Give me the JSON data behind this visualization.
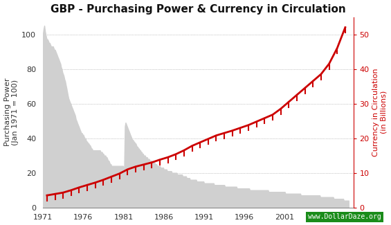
{
  "title": "GBP - Purchasing Power & Currency in Circulation",
  "ylabel_left": "Purchasing Power\n(Jan 1971 = 100)",
  "ylabel_right": "Currency in Circulation\n(in Billions)",
  "xlim": [
    1971,
    2009.5
  ],
  "ylim_left": [
    0,
    110
  ],
  "ylim_right": [
    0,
    55
  ],
  "xticks": [
    1971,
    1976,
    1981,
    1986,
    1991,
    1996,
    2001,
    2006
  ],
  "yticks_left": [
    0,
    20,
    40,
    60,
    80,
    100
  ],
  "yticks_right": [
    0,
    10,
    20,
    30,
    40,
    50
  ],
  "bg_color": "#ffffff",
  "grid_color": "#999999",
  "pp_fill_color": "#d0d0d0",
  "currency_line_color": "#cc0000",
  "watermark_text": "www.DollarDaze.org",
  "watermark_bg": "#1a8c1a",
  "watermark_text_color": "#ffffff",
  "pp_data": [
    [
      1971.0,
      100
    ],
    [
      1971.08,
      103
    ],
    [
      1971.17,
      105
    ],
    [
      1971.25,
      102
    ],
    [
      1971.33,
      100
    ],
    [
      1971.42,
      98
    ],
    [
      1971.5,
      97
    ],
    [
      1971.58,
      97
    ],
    [
      1971.67,
      96
    ],
    [
      1971.75,
      95
    ],
    [
      1971.83,
      95
    ],
    [
      1971.92,
      94
    ],
    [
      1972.0,
      93
    ],
    [
      1972.08,
      93
    ],
    [
      1972.17,
      93
    ],
    [
      1972.25,
      93
    ],
    [
      1972.33,
      92
    ],
    [
      1972.42,
      91
    ],
    [
      1972.5,
      91
    ],
    [
      1972.58,
      90
    ],
    [
      1972.67,
      89
    ],
    [
      1972.75,
      88
    ],
    [
      1972.83,
      87
    ],
    [
      1972.92,
      86
    ],
    [
      1973.0,
      85
    ],
    [
      1973.08,
      84
    ],
    [
      1973.17,
      83
    ],
    [
      1973.25,
      81
    ],
    [
      1973.33,
      80
    ],
    [
      1973.42,
      78
    ],
    [
      1973.5,
      77
    ],
    [
      1973.58,
      76
    ],
    [
      1973.67,
      74
    ],
    [
      1973.75,
      73
    ],
    [
      1973.83,
      71
    ],
    [
      1973.92,
      69
    ],
    [
      1974.0,
      67
    ],
    [
      1974.08,
      65
    ],
    [
      1974.17,
      63
    ],
    [
      1974.25,
      62
    ],
    [
      1974.33,
      61
    ],
    [
      1974.42,
      60
    ],
    [
      1974.5,
      59
    ],
    [
      1974.58,
      58
    ],
    [
      1974.67,
      57
    ],
    [
      1974.75,
      56
    ],
    [
      1974.83,
      55
    ],
    [
      1974.92,
      54
    ],
    [
      1975.0,
      53
    ],
    [
      1975.08,
      51
    ],
    [
      1975.17,
      50
    ],
    [
      1975.25,
      49
    ],
    [
      1975.33,
      48
    ],
    [
      1975.42,
      47
    ],
    [
      1975.5,
      46
    ],
    [
      1975.58,
      45
    ],
    [
      1975.67,
      44
    ],
    [
      1975.75,
      43
    ],
    [
      1975.83,
      43
    ],
    [
      1975.92,
      42
    ],
    [
      1976.0,
      42
    ],
    [
      1976.08,
      41
    ],
    [
      1976.17,
      40
    ],
    [
      1976.25,
      40
    ],
    [
      1976.33,
      39
    ],
    [
      1976.42,
      38
    ],
    [
      1976.5,
      38
    ],
    [
      1976.58,
      37
    ],
    [
      1976.67,
      37
    ],
    [
      1976.75,
      36
    ],
    [
      1976.83,
      36
    ],
    [
      1976.92,
      35
    ],
    [
      1977.0,
      34
    ],
    [
      1977.08,
      34
    ],
    [
      1977.17,
      33
    ],
    [
      1977.25,
      33
    ],
    [
      1977.33,
      33
    ],
    [
      1977.42,
      33
    ],
    [
      1977.5,
      33
    ],
    [
      1977.58,
      33
    ],
    [
      1977.67,
      33
    ],
    [
      1977.75,
      33
    ],
    [
      1977.83,
      33
    ],
    [
      1977.92,
      33
    ],
    [
      1978.0,
      33
    ],
    [
      1978.08,
      33
    ],
    [
      1978.17,
      32
    ],
    [
      1978.25,
      32
    ],
    [
      1978.33,
      32
    ],
    [
      1978.42,
      31
    ],
    [
      1978.5,
      31
    ],
    [
      1978.58,
      30
    ],
    [
      1978.67,
      30
    ],
    [
      1978.75,
      30
    ],
    [
      1978.83,
      29
    ],
    [
      1978.92,
      29
    ],
    [
      1979.0,
      28
    ],
    [
      1979.08,
      27
    ],
    [
      1979.17,
      27
    ],
    [
      1979.25,
      26
    ],
    [
      1979.33,
      25
    ],
    [
      1979.42,
      25
    ],
    [
      1979.5,
      24
    ],
    [
      1979.58,
      24
    ],
    [
      1979.67,
      24
    ],
    [
      1979.75,
      24
    ],
    [
      1979.83,
      24
    ],
    [
      1979.92,
      24
    ],
    [
      1980.0,
      24
    ],
    [
      1980.08,
      24
    ],
    [
      1980.17,
      24
    ],
    [
      1980.25,
      24
    ],
    [
      1980.33,
      24
    ],
    [
      1980.42,
      24
    ],
    [
      1980.5,
      24
    ],
    [
      1980.58,
      24
    ],
    [
      1980.67,
      24
    ],
    [
      1980.75,
      24
    ],
    [
      1980.83,
      24
    ],
    [
      1980.92,
      24
    ],
    [
      1981.0,
      23
    ],
    [
      1981.08,
      23
    ],
    [
      1981.17,
      47
    ],
    [
      1981.25,
      49
    ],
    [
      1981.33,
      48
    ],
    [
      1981.42,
      47
    ],
    [
      1981.5,
      46
    ],
    [
      1981.58,
      45
    ],
    [
      1981.67,
      44
    ],
    [
      1981.75,
      43
    ],
    [
      1981.83,
      42
    ],
    [
      1981.92,
      41
    ],
    [
      1982.0,
      40
    ],
    [
      1982.08,
      39
    ],
    [
      1982.17,
      39
    ],
    [
      1982.25,
      38
    ],
    [
      1982.33,
      38
    ],
    [
      1982.42,
      37
    ],
    [
      1982.5,
      37
    ],
    [
      1982.58,
      36
    ],
    [
      1982.67,
      35
    ],
    [
      1982.75,
      35
    ],
    [
      1982.83,
      34
    ],
    [
      1982.92,
      34
    ],
    [
      1983.0,
      33
    ],
    [
      1983.08,
      33
    ],
    [
      1983.17,
      32
    ],
    [
      1983.25,
      32
    ],
    [
      1983.33,
      31
    ],
    [
      1983.42,
      31
    ],
    [
      1983.5,
      30
    ],
    [
      1983.58,
      30
    ],
    [
      1983.67,
      30
    ],
    [
      1983.75,
      29
    ],
    [
      1983.83,
      29
    ],
    [
      1983.92,
      29
    ],
    [
      1984.0,
      28
    ],
    [
      1984.08,
      28
    ],
    [
      1984.17,
      28
    ],
    [
      1984.25,
      27
    ],
    [
      1984.33,
      27
    ],
    [
      1984.42,
      27
    ],
    [
      1984.5,
      27
    ],
    [
      1984.58,
      26
    ],
    [
      1984.67,
      26
    ],
    [
      1984.75,
      26
    ],
    [
      1984.83,
      26
    ],
    [
      1984.92,
      25
    ],
    [
      1985.0,
      25
    ],
    [
      1985.08,
      25
    ],
    [
      1985.17,
      24
    ],
    [
      1985.25,
      24
    ],
    [
      1985.33,
      24
    ],
    [
      1985.42,
      24
    ],
    [
      1985.5,
      24
    ],
    [
      1985.58,
      23
    ],
    [
      1985.67,
      23
    ],
    [
      1985.75,
      23
    ],
    [
      1985.83,
      23
    ],
    [
      1985.92,
      23
    ],
    [
      1986.0,
      22
    ],
    [
      1986.08,
      22
    ],
    [
      1986.17,
      22
    ],
    [
      1986.25,
      22
    ],
    [
      1986.33,
      22
    ],
    [
      1986.42,
      21
    ],
    [
      1986.5,
      21
    ],
    [
      1986.58,
      21
    ],
    [
      1986.67,
      21
    ],
    [
      1986.75,
      21
    ],
    [
      1986.83,
      21
    ],
    [
      1986.92,
      21
    ],
    [
      1987.0,
      20
    ],
    [
      1987.08,
      20
    ],
    [
      1987.17,
      20
    ],
    [
      1987.25,
      20
    ],
    [
      1987.33,
      20
    ],
    [
      1987.42,
      20
    ],
    [
      1987.5,
      20
    ],
    [
      1987.58,
      20
    ],
    [
      1987.67,
      19
    ],
    [
      1987.75,
      19
    ],
    [
      1987.83,
      19
    ],
    [
      1987.92,
      19
    ],
    [
      1988.0,
      19
    ],
    [
      1988.08,
      19
    ],
    [
      1988.17,
      19
    ],
    [
      1988.25,
      19
    ],
    [
      1988.33,
      18
    ],
    [
      1988.42,
      18
    ],
    [
      1988.5,
      18
    ],
    [
      1988.58,
      18
    ],
    [
      1988.67,
      18
    ],
    [
      1988.75,
      18
    ],
    [
      1988.83,
      17
    ],
    [
      1988.92,
      17
    ],
    [
      1989.0,
      17
    ],
    [
      1989.08,
      17
    ],
    [
      1989.17,
      17
    ],
    [
      1989.25,
      16
    ],
    [
      1989.33,
      16
    ],
    [
      1989.42,
      16
    ],
    [
      1989.5,
      16
    ],
    [
      1989.58,
      16
    ],
    [
      1989.67,
      16
    ],
    [
      1989.75,
      16
    ],
    [
      1989.83,
      16
    ],
    [
      1989.92,
      16
    ],
    [
      1990.0,
      16
    ],
    [
      1990.08,
      15
    ],
    [
      1990.17,
      15
    ],
    [
      1990.25,
      15
    ],
    [
      1990.33,
      15
    ],
    [
      1990.42,
      15
    ],
    [
      1990.5,
      15
    ],
    [
      1990.58,
      15
    ],
    [
      1990.67,
      15
    ],
    [
      1990.75,
      15
    ],
    [
      1990.83,
      15
    ],
    [
      1990.92,
      15
    ],
    [
      1991.0,
      14
    ],
    [
      1991.08,
      14
    ],
    [
      1991.17,
      14
    ],
    [
      1991.25,
      14
    ],
    [
      1991.33,
      14
    ],
    [
      1991.42,
      14
    ],
    [
      1991.5,
      14
    ],
    [
      1991.58,
      14
    ],
    [
      1991.67,
      14
    ],
    [
      1991.75,
      14
    ],
    [
      1991.83,
      14
    ],
    [
      1991.92,
      14
    ],
    [
      1992.0,
      14
    ],
    [
      1992.08,
      14
    ],
    [
      1992.17,
      14
    ],
    [
      1992.25,
      13
    ],
    [
      1992.33,
      13
    ],
    [
      1992.42,
      13
    ],
    [
      1992.5,
      13
    ],
    [
      1992.58,
      13
    ],
    [
      1992.67,
      13
    ],
    [
      1992.75,
      13
    ],
    [
      1992.83,
      13
    ],
    [
      1992.92,
      13
    ],
    [
      1993.0,
      13
    ],
    [
      1993.08,
      13
    ],
    [
      1993.17,
      13
    ],
    [
      1993.25,
      13
    ],
    [
      1993.33,
      13
    ],
    [
      1993.42,
      13
    ],
    [
      1993.5,
      13
    ],
    [
      1993.58,
      12
    ],
    [
      1993.67,
      12
    ],
    [
      1993.75,
      12
    ],
    [
      1993.83,
      12
    ],
    [
      1993.92,
      12
    ],
    [
      1994.0,
      12
    ],
    [
      1994.08,
      12
    ],
    [
      1994.17,
      12
    ],
    [
      1994.25,
      12
    ],
    [
      1994.33,
      12
    ],
    [
      1994.42,
      12
    ],
    [
      1994.5,
      12
    ],
    [
      1994.58,
      12
    ],
    [
      1994.67,
      12
    ],
    [
      1994.75,
      12
    ],
    [
      1994.83,
      12
    ],
    [
      1994.92,
      12
    ],
    [
      1995.0,
      12
    ],
    [
      1995.08,
      11
    ],
    [
      1995.17,
      11
    ],
    [
      1995.25,
      11
    ],
    [
      1995.33,
      11
    ],
    [
      1995.42,
      11
    ],
    [
      1995.5,
      11
    ],
    [
      1995.58,
      11
    ],
    [
      1995.67,
      11
    ],
    [
      1995.75,
      11
    ],
    [
      1995.83,
      11
    ],
    [
      1995.92,
      11
    ],
    [
      1996.0,
      11
    ],
    [
      1996.08,
      11
    ],
    [
      1996.17,
      11
    ],
    [
      1996.25,
      11
    ],
    [
      1996.33,
      11
    ],
    [
      1996.42,
      11
    ],
    [
      1996.5,
      11
    ],
    [
      1996.58,
      11
    ],
    [
      1996.67,
      10
    ],
    [
      1996.75,
      10
    ],
    [
      1996.83,
      10
    ],
    [
      1996.92,
      10
    ],
    [
      1997.0,
      10
    ],
    [
      1997.08,
      10
    ],
    [
      1997.17,
      10
    ],
    [
      1997.25,
      10
    ],
    [
      1997.33,
      10
    ],
    [
      1997.42,
      10
    ],
    [
      1997.5,
      10
    ],
    [
      1997.58,
      10
    ],
    [
      1997.67,
      10
    ],
    [
      1997.75,
      10
    ],
    [
      1997.83,
      10
    ],
    [
      1997.92,
      10
    ],
    [
      1998.0,
      10
    ],
    [
      1998.08,
      10
    ],
    [
      1998.17,
      10
    ],
    [
      1998.25,
      10
    ],
    [
      1998.33,
      10
    ],
    [
      1998.42,
      10
    ],
    [
      1998.5,
      10
    ],
    [
      1998.58,
      10
    ],
    [
      1998.67,
      10
    ],
    [
      1998.75,
      10
    ],
    [
      1998.83,
      10
    ],
    [
      1998.92,
      10
    ],
    [
      1999.0,
      9
    ],
    [
      1999.08,
      9
    ],
    [
      1999.17,
      9
    ],
    [
      1999.25,
      9
    ],
    [
      1999.33,
      9
    ],
    [
      1999.42,
      9
    ],
    [
      1999.5,
      9
    ],
    [
      1999.58,
      9
    ],
    [
      1999.67,
      9
    ],
    [
      1999.75,
      9
    ],
    [
      1999.83,
      9
    ],
    [
      1999.92,
      9
    ],
    [
      2000.0,
      9
    ],
    [
      2000.08,
      9
    ],
    [
      2000.17,
      9
    ],
    [
      2000.25,
      9
    ],
    [
      2000.33,
      9
    ],
    [
      2000.42,
      9
    ],
    [
      2000.5,
      9
    ],
    [
      2000.58,
      9
    ],
    [
      2000.67,
      9
    ],
    [
      2000.75,
      9
    ],
    [
      2000.83,
      9
    ],
    [
      2000.92,
      9
    ],
    [
      2001.0,
      9
    ],
    [
      2001.08,
      8
    ],
    [
      2001.17,
      8
    ],
    [
      2001.25,
      8
    ],
    [
      2001.33,
      8
    ],
    [
      2001.42,
      8
    ],
    [
      2001.5,
      8
    ],
    [
      2001.58,
      8
    ],
    [
      2001.67,
      8
    ],
    [
      2001.75,
      8
    ],
    [
      2001.83,
      8
    ],
    [
      2001.92,
      8
    ],
    [
      2002.0,
      8
    ],
    [
      2002.08,
      8
    ],
    [
      2002.17,
      8
    ],
    [
      2002.25,
      8
    ],
    [
      2002.33,
      8
    ],
    [
      2002.42,
      8
    ],
    [
      2002.5,
      8
    ],
    [
      2002.58,
      8
    ],
    [
      2002.67,
      8
    ],
    [
      2002.75,
      8
    ],
    [
      2002.83,
      8
    ],
    [
      2002.92,
      8
    ],
    [
      2003.0,
      7
    ],
    [
      2003.08,
      7
    ],
    [
      2003.17,
      7
    ],
    [
      2003.25,
      7
    ],
    [
      2003.33,
      7
    ],
    [
      2003.42,
      7
    ],
    [
      2003.5,
      7
    ],
    [
      2003.58,
      7
    ],
    [
      2003.67,
      7
    ],
    [
      2003.75,
      7
    ],
    [
      2003.83,
      7
    ],
    [
      2003.92,
      7
    ],
    [
      2004.0,
      7
    ],
    [
      2004.08,
      7
    ],
    [
      2004.17,
      7
    ],
    [
      2004.25,
      7
    ],
    [
      2004.33,
      7
    ],
    [
      2004.42,
      7
    ],
    [
      2004.5,
      7
    ],
    [
      2004.58,
      7
    ],
    [
      2004.67,
      7
    ],
    [
      2004.75,
      7
    ],
    [
      2004.83,
      7
    ],
    [
      2004.92,
      7
    ],
    [
      2005.0,
      7
    ],
    [
      2005.08,
      7
    ],
    [
      2005.17,
      7
    ],
    [
      2005.25,
      7
    ],
    [
      2005.33,
      7
    ],
    [
      2005.42,
      6
    ],
    [
      2005.5,
      6
    ],
    [
      2005.58,
      6
    ],
    [
      2005.67,
      6
    ],
    [
      2005.75,
      6
    ],
    [
      2005.83,
      6
    ],
    [
      2005.92,
      6
    ],
    [
      2006.0,
      6
    ],
    [
      2006.08,
      6
    ],
    [
      2006.17,
      6
    ],
    [
      2006.25,
      6
    ],
    [
      2006.33,
      6
    ],
    [
      2006.42,
      6
    ],
    [
      2006.5,
      6
    ],
    [
      2006.58,
      6
    ],
    [
      2006.67,
      6
    ],
    [
      2006.75,
      6
    ],
    [
      2006.83,
      6
    ],
    [
      2006.92,
      6
    ],
    [
      2007.0,
      6
    ],
    [
      2007.08,
      5
    ],
    [
      2007.17,
      5
    ],
    [
      2007.25,
      5
    ],
    [
      2007.33,
      5
    ],
    [
      2007.42,
      5
    ],
    [
      2007.5,
      5
    ],
    [
      2007.58,
      5
    ],
    [
      2007.67,
      5
    ],
    [
      2007.75,
      5
    ],
    [
      2007.83,
      5
    ],
    [
      2007.92,
      5
    ],
    [
      2008.0,
      5
    ],
    [
      2008.08,
      5
    ],
    [
      2008.17,
      5
    ],
    [
      2008.25,
      5
    ],
    [
      2008.33,
      4
    ],
    [
      2008.42,
      4
    ],
    [
      2008.5,
      4
    ],
    [
      2008.58,
      4
    ],
    [
      2008.67,
      4
    ],
    [
      2008.75,
      4
    ],
    [
      2008.83,
      4
    ],
    [
      2008.92,
      4
    ]
  ],
  "circ_data": [
    [
      1971.5,
      3.5
    ],
    [
      1972.5,
      3.9
    ],
    [
      1973.5,
      4.3
    ],
    [
      1974.5,
      5.0
    ],
    [
      1975.5,
      5.8
    ],
    [
      1976.5,
      6.5
    ],
    [
      1977.5,
      7.2
    ],
    [
      1978.5,
      8.0
    ],
    [
      1979.5,
      8.9
    ],
    [
      1980.5,
      9.8
    ],
    [
      1981.5,
      11.0
    ],
    [
      1982.5,
      11.8
    ],
    [
      1983.5,
      12.4
    ],
    [
      1984.5,
      13.0
    ],
    [
      1985.5,
      13.8
    ],
    [
      1986.5,
      14.5
    ],
    [
      1987.5,
      15.4
    ],
    [
      1988.5,
      16.5
    ],
    [
      1989.5,
      17.8
    ],
    [
      1990.5,
      18.8
    ],
    [
      1991.5,
      19.8
    ],
    [
      1992.5,
      20.8
    ],
    [
      1993.5,
      21.5
    ],
    [
      1994.5,
      22.2
    ],
    [
      1995.5,
      23.0
    ],
    [
      1996.5,
      23.8
    ],
    [
      1997.5,
      24.8
    ],
    [
      1998.5,
      25.8
    ],
    [
      1999.5,
      26.8
    ],
    [
      2000.5,
      28.5
    ],
    [
      2001.5,
      30.5
    ],
    [
      2002.5,
      32.5
    ],
    [
      2003.5,
      34.5
    ],
    [
      2004.5,
      36.5
    ],
    [
      2005.5,
      38.5
    ],
    [
      2006.5,
      41.5
    ],
    [
      2007.5,
      46.0
    ],
    [
      2008.5,
      52.0
    ]
  ]
}
